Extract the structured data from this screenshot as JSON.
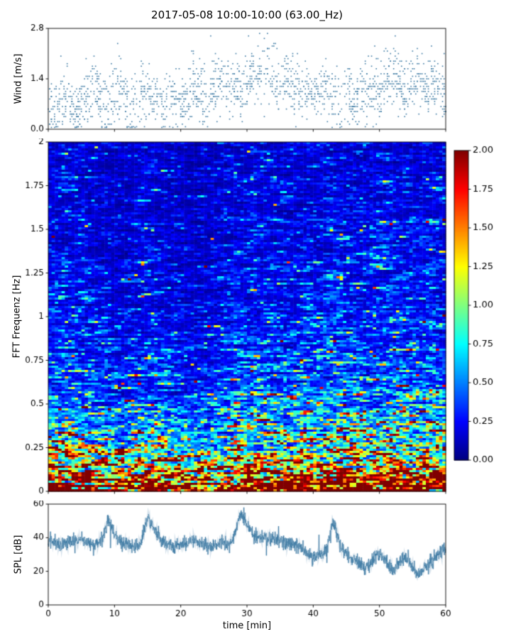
{
  "title": "2017-05-08 10:00-10:00 (63.00_Hz)",
  "chart_data": [
    {
      "type": "scatter",
      "name": "wind",
      "title": "2017-05-08 10:00-10:00 (63.00_Hz)",
      "ylabel": "Wind [m/s]",
      "ylim": [
        0,
        2.8
      ],
      "yticks": [
        0.0,
        1.4,
        2.8
      ],
      "ytick_labels": [
        "0.0",
        "1.4",
        "2.8"
      ],
      "xlim": [
        0,
        60
      ],
      "xticks": [
        0,
        10,
        20,
        30,
        40,
        50,
        60
      ],
      "marker_color": "#3a78a2",
      "n_points": 1700,
      "spread": 0.42,
      "mean_profile_per_min": [
        0.8,
        0.5,
        0.6,
        0.9,
        0.7,
        0.5,
        1.0,
        1.2,
        0.8,
        0.6,
        0.9,
        1.1,
        0.7,
        0.5,
        1.2,
        1.1,
        0.9,
        0.6,
        0.8,
        0.9,
        0.7,
        0.9,
        1.3,
        1.0,
        0.6,
        1.2,
        1.5,
        1.1,
        1.3,
        1.0,
        1.2,
        1.6,
        1.4,
        1.7,
        1.3,
        1.1,
        1.4,
        1.2,
        1.0,
        1.1,
        0.9,
        1.0,
        1.2,
        0.8,
        0.9,
        1.1,
        0.7,
        0.9,
        1.0,
        1.3,
        1.1,
        1.4,
        1.6,
        1.2,
        1.0,
        1.3,
        1.4,
        1.1,
        1.2,
        1.3,
        0.9
      ]
    },
    {
      "type": "heatmap",
      "name": "spectrogram",
      "ylabel": "FFT Frequenz [Hz]",
      "ylim": [
        0,
        2
      ],
      "yticks": [
        0,
        0.25,
        0.5,
        0.75,
        1,
        1.25,
        1.5,
        1.75,
        2
      ],
      "ytick_labels": [
        "0",
        "0.25",
        "0.5",
        "0.75",
        "1",
        "1.25",
        "1.5",
        "1.75",
        "2"
      ],
      "xlim": [
        0,
        60
      ],
      "xticks": [
        0,
        10,
        20,
        30,
        40,
        50,
        60
      ],
      "colormap": "jet",
      "clim": [
        0,
        2
      ],
      "colorbar_ticks": [
        0,
        0.25,
        0.5,
        0.75,
        1,
        1.25,
        1.5,
        1.75,
        2
      ],
      "colorbar_tick_labels": [
        "0.00",
        "0.25",
        "0.50",
        "0.75",
        "1.00",
        "1.25",
        "1.50",
        "1.75",
        "2.00"
      ],
      "mean_value_by_freq": {
        "freqs": [
          0,
          0.1,
          0.2,
          0.3,
          0.4,
          0.5,
          0.6,
          0.7,
          0.8,
          0.9,
          1.0,
          1.1,
          1.2,
          1.3,
          1.4,
          1.5,
          1.6,
          1.7,
          1.8,
          1.9,
          2.0
        ],
        "values": [
          2.5,
          1.7,
          1.05,
          0.8,
          0.62,
          0.5,
          0.42,
          0.37,
          0.33,
          0.3,
          0.27,
          0.25,
          0.24,
          0.22,
          0.21,
          0.2,
          0.19,
          0.185,
          0.18,
          0.17,
          0.165
        ]
      },
      "time_modulation": [
        1.0,
        1.05,
        1.0,
        0.95,
        0.8,
        0.75,
        0.8,
        0.9,
        0.95,
        0.85,
        0.75,
        0.7,
        0.75,
        0.85,
        0.95,
        1.0,
        1.05,
        1.0,
        0.95,
        1.0,
        1.05,
        1.0,
        1.1,
        1.05,
        1.0,
        1.1,
        1.15,
        1.05,
        1.1,
        1.15,
        1.0
      ]
    },
    {
      "type": "line",
      "name": "spl",
      "ylabel": "SPL [dB]",
      "xlabel": "time [min]",
      "ylim": [
        0,
        60
      ],
      "yticks": [
        0,
        20,
        40,
        60
      ],
      "ytick_labels": [
        "0",
        "20",
        "40",
        "60"
      ],
      "xlim": [
        0,
        60
      ],
      "xticks": [
        0,
        10,
        20,
        30,
        40,
        50,
        60
      ],
      "xtick_labels": [
        "0",
        "10",
        "20",
        "30",
        "40",
        "50",
        "60"
      ],
      "line_color": "#3a78a2",
      "spl_per_min": [
        38,
        37,
        36,
        37,
        38,
        39,
        37,
        36,
        38,
        50,
        42,
        37,
        36,
        35,
        37,
        52,
        46,
        38,
        36,
        35,
        36,
        37,
        38,
        36,
        34,
        35,
        37,
        36,
        39,
        55,
        48,
        42,
        40,
        39,
        40,
        38,
        37,
        36,
        35,
        31,
        28,
        30,
        33,
        50,
        36,
        30,
        27,
        25,
        22,
        27,
        30,
        26,
        20,
        25,
        29,
        22,
        18,
        23,
        26,
        31,
        34
      ]
    }
  ]
}
